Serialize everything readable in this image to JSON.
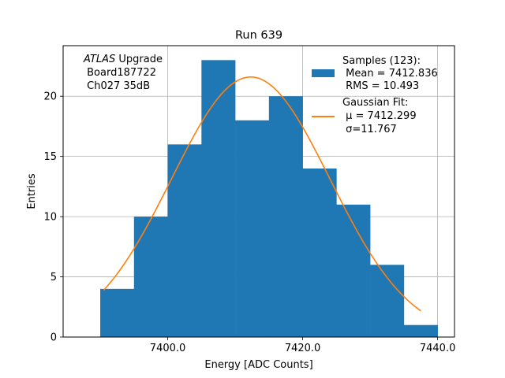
{
  "chart_data": {
    "type": "bar",
    "title": "Run 639",
    "xlabel": "Energy [ADC Counts]",
    "ylabel": "Entries",
    "xlim": [
      7384.5,
      7442.5
    ],
    "ylim": [
      0,
      24.2
    ],
    "grid": true,
    "x_ticks": [
      7400.0,
      7420.0,
      7440.0
    ],
    "x_tick_labels": [
      "7400.0",
      "7420.0",
      "7440.0"
    ],
    "y_ticks": [
      0,
      5,
      10,
      15,
      20
    ],
    "y_tick_labels": [
      "0",
      "5",
      "10",
      "15",
      "20"
    ],
    "histogram": {
      "bin_edges": [
        7390,
        7395,
        7400,
        7405,
        7410,
        7415,
        7420,
        7425,
        7430,
        7435,
        7440
      ],
      "counts": [
        4,
        10,
        16,
        23,
        18,
        20,
        14,
        11,
        6,
        1
      ],
      "color": "#1f77b4"
    },
    "fit": {
      "mu": 7412.299,
      "sigma": 11.767,
      "amplitude": 21.6,
      "x_range": [
        7390.5,
        7437.5
      ],
      "color": "#ff7f0e"
    },
    "annotation": {
      "line1_italic": "ATLAS",
      "line1_rest": " Upgrade",
      "line2": " Board187722",
      "line3": " Ch027 35dB"
    },
    "legend": {
      "position": "top-right",
      "samples_title": "Samples (123):",
      "samples_mean": " Mean = 7412.836",
      "samples_rms": " RMS = 10.493",
      "fit_title": "Gaussian Fit:",
      "fit_mu": " μ = 7412.299",
      "fit_sigma": " σ=11.767"
    }
  }
}
